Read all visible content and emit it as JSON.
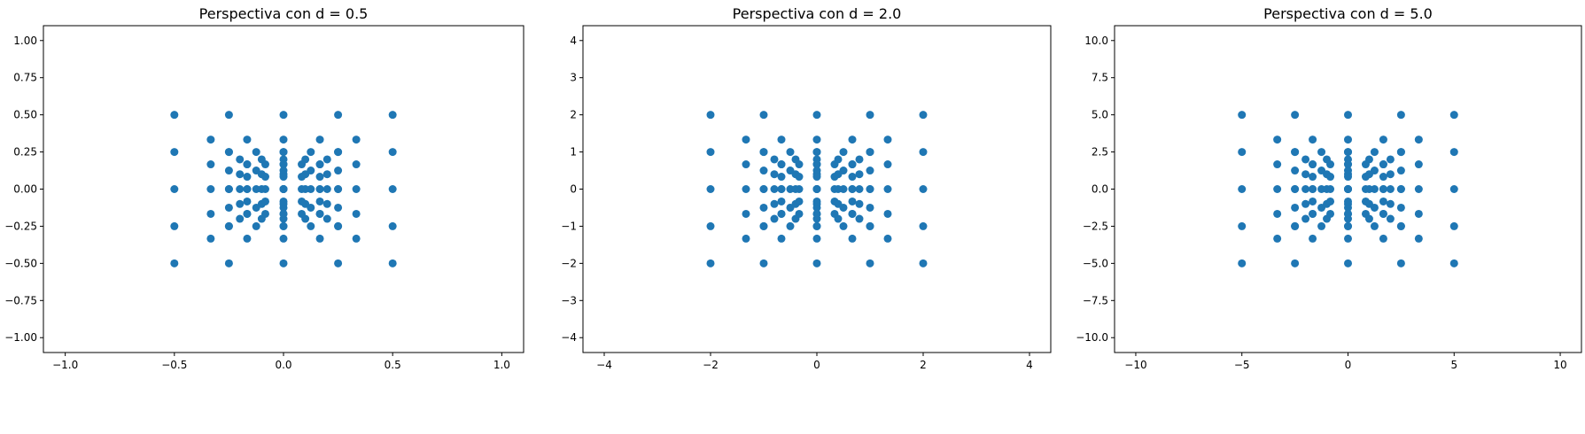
{
  "chart_data": [
    {
      "type": "scatter",
      "title": "Perspectiva con d = 0.5",
      "xlabel": "",
      "ylabel": "",
      "d": 0.5,
      "xlim": [
        -1.1,
        1.1
      ],
      "ylim": [
        -1.1,
        1.1
      ],
      "xticks": [
        -1.0,
        -0.5,
        0.0,
        0.5,
        1.0
      ],
      "xtick_labels": [
        "−1.0",
        "−0.5",
        "0.0",
        "0.5",
        "1.0"
      ],
      "yticks": [
        -1.0,
        -0.75,
        -0.5,
        -0.25,
        0.0,
        0.25,
        0.5,
        0.75,
        1.0
      ],
      "ytick_labels": [
        "−1.00",
        "−0.75",
        "−0.50",
        "−0.25",
        "0.00",
        "0.25",
        "0.50",
        "0.75",
        "1.00"
      ],
      "grid": false,
      "color": "#1f77b4"
    },
    {
      "type": "scatter",
      "title": "Perspectiva con d = 2.0",
      "xlabel": "",
      "ylabel": "",
      "d": 2.0,
      "xlim": [
        -4.4,
        4.4
      ],
      "ylim": [
        -4.4,
        4.4
      ],
      "xticks": [
        -4,
        -2,
        0,
        2,
        4
      ],
      "xtick_labels": [
        "−4",
        "−2",
        "0",
        "2",
        "4"
      ],
      "yticks": [
        -4,
        -3,
        -2,
        -1,
        0,
        1,
        2,
        3,
        4
      ],
      "ytick_labels": [
        "−4",
        "−3",
        "−2",
        "−1",
        "0",
        "1",
        "2",
        "3",
        "4"
      ],
      "grid": false,
      "color": "#1f77b4"
    },
    {
      "type": "scatter",
      "title": "Perspectiva con d = 5.0",
      "xlabel": "",
      "ylabel": "",
      "d": 5.0,
      "xlim": [
        -11,
        11
      ],
      "ylim": [
        -11,
        11
      ],
      "xticks": [
        -10,
        -5,
        0,
        5,
        10
      ],
      "xtick_labels": [
        "−10",
        "−5",
        "0",
        "5",
        "10"
      ],
      "yticks": [
        -10.0,
        -7.5,
        -5.0,
        -2.5,
        0.0,
        2.5,
        5.0,
        7.5,
        10.0
      ],
      "ytick_labels": [
        "−10.0",
        "−7.5",
        "−5.0",
        "−2.5",
        "0.0",
        "2.5",
        "5.0",
        "7.5",
        "10.0"
      ],
      "grid": false,
      "color": "#1f77b4"
    }
  ]
}
